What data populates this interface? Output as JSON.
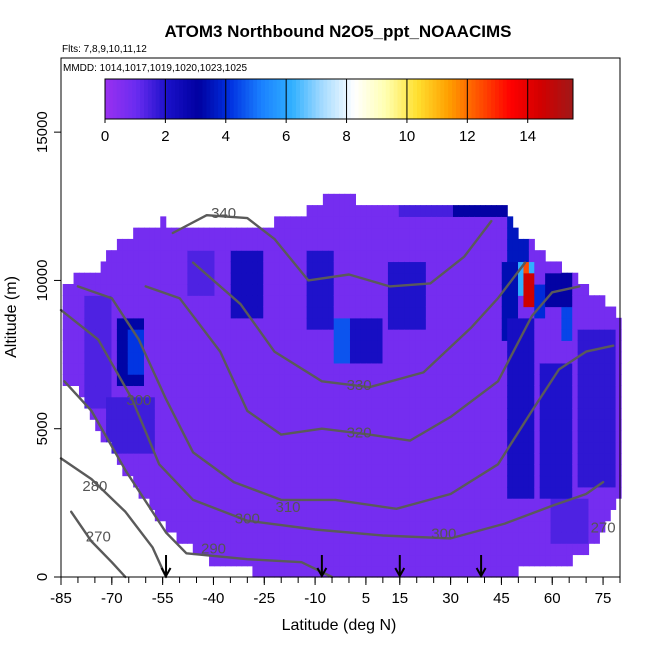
{
  "chart_data": {
    "type": "heatmap",
    "title": "ATOM3 Northbound N2O5_ppt_NOAACIMS",
    "flights_label": "Flts: 7,8,9,10,11,12",
    "dates_label": "MMDD: 1014,1017,1019,1020,1023,1025",
    "xlabel": "Latitude (deg N)",
    "ylabel": "Altitude (m)",
    "xlim": [
      -85,
      80
    ],
    "ylim": [
      0,
      17500
    ],
    "x_ticks": [
      -85,
      -70,
      -55,
      -40,
      -25,
      -10,
      5,
      15,
      30,
      45,
      60,
      75
    ],
    "y_ticks": [
      0,
      5000,
      10000,
      15000
    ],
    "colorbar": {
      "min": 0,
      "max": 15.5,
      "ticks": [
        0,
        2,
        4,
        6,
        8,
        10,
        12,
        14
      ],
      "colors": [
        "#9a30f0",
        "#6a2cf0",
        "#1a10c8",
        "#0000a0",
        "#0030e0",
        "#1a80ff",
        "#30b0ff",
        "#a8dcff",
        "#ffffff",
        "#ffffb0",
        "#ffe030",
        "#ffa000",
        "#ff5000",
        "#ff0000",
        "#d00000",
        "#a01818"
      ]
    },
    "background_value": 0.8,
    "coverage": [
      {
        "lat": -84,
        "alt_min": 6500,
        "alt_max": 10000
      },
      {
        "lat": -80,
        "alt_min": 6500,
        "alt_max": 10100
      },
      {
        "lat": -75,
        "alt_min": 5200,
        "alt_max": 10300
      },
      {
        "lat": -70,
        "alt_min": 4200,
        "alt_max": 11000
      },
      {
        "lat": -65,
        "alt_min": 3300,
        "alt_max": 11500
      },
      {
        "lat": -60,
        "alt_min": 2600,
        "alt_max": 11800
      },
      {
        "lat": -55,
        "alt_min": 1800,
        "alt_max": 12000
      },
      {
        "lat": -50,
        "alt_min": 1300,
        "alt_max": 11900
      },
      {
        "lat": -45,
        "alt_min": 900,
        "alt_max": 11800
      },
      {
        "lat": -40,
        "alt_min": 500,
        "alt_max": 11700
      },
      {
        "lat": -35,
        "alt_min": 300,
        "alt_max": 11700
      },
      {
        "lat": -30,
        "alt_min": 200,
        "alt_max": 11800
      },
      {
        "lat": -25,
        "alt_min": 150,
        "alt_max": 11900
      },
      {
        "lat": -20,
        "alt_min": 100,
        "alt_max": 12000
      },
      {
        "lat": -15,
        "alt_min": 50,
        "alt_max": 12200
      },
      {
        "lat": -10,
        "alt_min": 0,
        "alt_max": 12500
      },
      {
        "lat": -5,
        "alt_min": 0,
        "alt_max": 13000
      },
      {
        "lat": 0,
        "alt_min": 0,
        "alt_max": 12800
      },
      {
        "lat": 5,
        "alt_min": 0,
        "alt_max": 12600
      },
      {
        "lat": 10,
        "alt_min": 0,
        "alt_max": 12600
      },
      {
        "lat": 15,
        "alt_min": 0,
        "alt_max": 12700
      },
      {
        "lat": 20,
        "alt_min": 0,
        "alt_max": 12700
      },
      {
        "lat": 25,
        "alt_min": 0,
        "alt_max": 12700
      },
      {
        "lat": 30,
        "alt_min": 0,
        "alt_max": 12700
      },
      {
        "lat": 35,
        "alt_min": 0,
        "alt_max": 12700
      },
      {
        "lat": 40,
        "alt_min": 0,
        "alt_max": 12700
      },
      {
        "lat": 45,
        "alt_min": 0,
        "alt_max": 12600
      },
      {
        "lat": 50,
        "alt_min": 200,
        "alt_max": 11600
      },
      {
        "lat": 55,
        "alt_min": 300,
        "alt_max": 11200
      },
      {
        "lat": 60,
        "alt_min": 400,
        "alt_max": 10600
      },
      {
        "lat": 65,
        "alt_min": 500,
        "alt_max": 10300
      },
      {
        "lat": 70,
        "alt_min": 800,
        "alt_max": 9800
      },
      {
        "lat": 75,
        "alt_min": 1600,
        "alt_max": 9300
      },
      {
        "lat": 79,
        "alt_min": 2800,
        "alt_max": 8800
      }
    ],
    "patches": [
      {
        "lat": [
          -78,
          -70
        ],
        "alt": [
          5800,
          9600
        ],
        "value": 1.4
      },
      {
        "lat": [
          -68,
          -60
        ],
        "alt": [
          6500,
          8700
        ],
        "value": 3.2
      },
      {
        "lat": [
          -66,
          -60
        ],
        "alt": [
          7000,
          8400
        ],
        "value": 4.2
      },
      {
        "lat": [
          -72,
          -58
        ],
        "alt": [
          4000,
          6000
        ],
        "value": 1.6
      },
      {
        "lat": [
          -35,
          -25
        ],
        "alt": [
          8800,
          11000
        ],
        "value": 2.3
      },
      {
        "lat": [
          -48,
          -40
        ],
        "alt": [
          9500,
          11200
        ],
        "value": 1.4
      },
      {
        "lat": [
          -12,
          -5
        ],
        "alt": [
          8500,
          11000
        ],
        "value": 2.0
      },
      {
        "lat": [
          -4,
          0
        ],
        "alt": [
          7300,
          8800
        ],
        "value": 4.6
      },
      {
        "lat": [
          1,
          10
        ],
        "alt": [
          7300,
          8800
        ],
        "value": 2.2
      },
      {
        "lat": [
          12,
          22
        ],
        "alt": [
          8500,
          10500
        ],
        "value": 2.0
      },
      {
        "lat": [
          15,
          30
        ],
        "alt": [
          12300,
          12700
        ],
        "value": 1.5
      },
      {
        "lat": [
          30,
          47
        ],
        "alt": [
          12300,
          12700
        ],
        "value": 3.0
      },
      {
        "lat": [
          46,
          53
        ],
        "alt": [
          10500,
          12700
        ],
        "value": 3.6
      },
      {
        "lat": [
          45,
          50
        ],
        "alt": [
          8000,
          10500
        ],
        "value": 3.4
      },
      {
        "lat": [
          50,
          54
        ],
        "alt": [
          9600,
          10800
        ],
        "value": 6.2
      },
      {
        "lat": [
          51,
          53
        ],
        "alt": [
          9100,
          10500
        ],
        "value": 12.5
      },
      {
        "lat": [
          52,
          54
        ],
        "alt": [
          9300,
          10300
        ],
        "value": 14.5
      },
      {
        "lat": [
          54,
          58
        ],
        "alt": [
          8700,
          10000
        ],
        "value": 4.0
      },
      {
        "lat": [
          58,
          66
        ],
        "alt": [
          9200,
          10300
        ],
        "value": 3.0
      },
      {
        "lat": [
          62,
          66
        ],
        "alt": [
          7800,
          9000
        ],
        "value": 4.4
      },
      {
        "lat": [
          46,
          54
        ],
        "alt": [
          2800,
          8800
        ],
        "value": 2.2
      },
      {
        "lat": [
          56,
          66
        ],
        "alt": [
          2500,
          7200
        ],
        "value": 2.0
      },
      {
        "lat": [
          68,
          78
        ],
        "alt": [
          3000,
          8500
        ],
        "value": 1.8
      },
      {
        "lat": [
          60,
          70
        ],
        "alt": [
          1000,
          2500
        ],
        "value": 1.4
      }
    ],
    "contours": [
      {
        "level": 270,
        "label": "270",
        "label_pos": [
          -74,
          1200
        ],
        "label_pos2": [
          75,
          1500
        ],
        "points": [
          [
            -82,
            2200
          ],
          [
            -76,
            1200
          ],
          [
            -70,
            500
          ],
          [
            -66,
            0
          ]
        ]
      },
      {
        "level": 280,
        "label": "280",
        "label_pos": [
          -75,
          2900
        ],
        "points": [
          [
            -85,
            4000
          ],
          [
            -76,
            3300
          ],
          [
            -66,
            2200
          ],
          [
            -58,
            1000
          ],
          [
            -54,
            0
          ]
        ]
      },
      {
        "level": 290,
        "label": "290",
        "label_pos": [
          -40,
          800
        ],
        "points": [
          [
            -84,
            6600
          ],
          [
            -76,
            5600
          ],
          [
            -66,
            3600
          ],
          [
            -54,
            1500
          ],
          [
            -48,
            800
          ],
          [
            -30,
            600
          ],
          [
            -14,
            500
          ],
          [
            -5,
            0
          ]
        ]
      },
      {
        "level": 300,
        "label": "300",
        "label_pos": [
          -62,
          5800
        ],
        "label_pos2": [
          -30,
          1800
        ],
        "label_pos3": [
          28,
          1300
        ],
        "points": [
          [
            -85,
            9000
          ],
          [
            -74,
            8000
          ],
          [
            -64,
            6000
          ],
          [
            -56,
            3800
          ],
          [
            -46,
            2600
          ],
          [
            -30,
            1900
          ],
          [
            -10,
            1600
          ],
          [
            10,
            1400
          ],
          [
            30,
            1300
          ],
          [
            46,
            1800
          ],
          [
            60,
            2400
          ],
          [
            70,
            2800
          ],
          [
            75,
            3200
          ]
        ]
      },
      {
        "level": 310,
        "label": "310",
        "label_pos": [
          -18,
          2200
        ],
        "points": [
          [
            -80,
            9800
          ],
          [
            -70,
            9400
          ],
          [
            -62,
            8000
          ],
          [
            -54,
            6000
          ],
          [
            -46,
            4200
          ],
          [
            -34,
            3200
          ],
          [
            -20,
            2600
          ],
          [
            -4,
            2600
          ],
          [
            14,
            2300
          ],
          [
            30,
            2800
          ],
          [
            44,
            3800
          ],
          [
            54,
            5600
          ],
          [
            62,
            7000
          ],
          [
            70,
            7600
          ],
          [
            78,
            7800
          ]
        ]
      },
      {
        "level": 320,
        "label": "320",
        "label_pos": [
          3,
          4700
        ],
        "points": [
          [
            -60,
            9800
          ],
          [
            -50,
            9400
          ],
          [
            -38,
            7600
          ],
          [
            -30,
            5600
          ],
          [
            -20,
            4800
          ],
          [
            -8,
            5000
          ],
          [
            6,
            4800
          ],
          [
            18,
            4600
          ],
          [
            30,
            5400
          ],
          [
            44,
            6600
          ],
          [
            54,
            8800
          ],
          [
            60,
            9600
          ],
          [
            68,
            9800
          ]
        ]
      },
      {
        "level": 330,
        "label": "330",
        "label_pos": [
          3,
          6300
        ],
        "points": [
          [
            -46,
            10600
          ],
          [
            -32,
            9200
          ],
          [
            -22,
            7600
          ],
          [
            -8,
            6600
          ],
          [
            6,
            6400
          ],
          [
            22,
            6900
          ],
          [
            36,
            8400
          ],
          [
            44,
            9400
          ],
          [
            52,
            10600
          ]
        ]
      },
      {
        "level": 340,
        "label": "340",
        "label_pos": [
          -37,
          12100
        ],
        "points": [
          [
            -52,
            11600
          ],
          [
            -42,
            12200
          ],
          [
            -30,
            12100
          ],
          [
            -22,
            11400
          ],
          [
            -12,
            10000
          ],
          [
            0,
            10200
          ],
          [
            12,
            9800
          ],
          [
            24,
            9900
          ],
          [
            34,
            10800
          ],
          [
            42,
            12000
          ]
        ]
      }
    ],
    "arrows_lat": [
      -54,
      -8,
      15,
      39
    ]
  }
}
